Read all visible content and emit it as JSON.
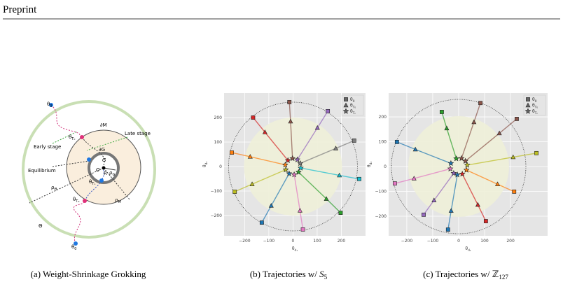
{
  "header": {
    "title": "Preprint"
  },
  "diagram": {
    "labels": {
      "theta0_top": {
        "base": "θ",
        "sub": "0"
      },
      "dM": "∂M",
      "late": "Late stage",
      "thetaT0_up": {
        "base": "θ",
        "sub": "T₀"
      },
      "early": "Early stage",
      "dG": "∂G",
      "G": "G",
      "equilibrium": "Equilibrium",
      "O": "O",
      "R": "R",
      "rhoG": {
        "base": "ρ",
        "sub": "G"
      },
      "thetaTn": {
        "base": "θ",
        "sub": "Tₙ"
      },
      "rhoTheta": {
        "base": "ρ",
        "sub": "Θ"
      },
      "rhoM": {
        "base": "ρ",
        "sub": "M"
      },
      "thetaT0_low": {
        "base": "θ",
        "sub": "T₀"
      },
      "Theta": "Θ",
      "theta0_bot": {
        "base": "θ",
        "sub": "0"
      }
    }
  },
  "chart_data": [
    {
      "type": "scatter",
      "grid": true,
      "legend": "upper right",
      "xlim": [
        -285,
        300
      ],
      "ylim": [
        -283,
        300
      ],
      "xticks": [
        {
          "value": -200,
          "label": "−200"
        },
        {
          "value": -100,
          "label": "−100"
        },
        0,
        100,
        200
      ],
      "yticks": [
        200,
        100,
        0,
        {
          "value": -100,
          "label": "−100"
        },
        {
          "value": -200,
          "label": "−200"
        }
      ],
      "xlabel": {
        "base": "θ",
        "sub": "d₁"
      },
      "ylabel": {
        "base": "θ",
        "sub": "d₂"
      },
      "colors": [
        "#8c564b",
        "#9467bd",
        "#7f7f7f",
        "#17becf",
        "#2ca02c",
        "#e377c2",
        "#1f77b4",
        "#bcbd22",
        "#ff7f0e",
        "#d62728"
      ],
      "series": [
        {
          "name": {
            "base": "θ",
            "sub": "0"
          },
          "marker": "square",
          "x": [
            -15,
            144,
            253,
            274,
            197,
            41,
            -129,
            -241,
            -253,
            -165
          ],
          "y": [
            263,
            226,
            106,
            -51,
            -189,
            -257,
            -229,
            -103,
            57,
            200
          ]
        },
        {
          "name": {
            "base": "θ",
            "sub": "T₀"
          },
          "marker": "triangle",
          "x": [
            -10,
            101,
            177,
            192,
            138,
            29,
            -90,
            -169,
            -177,
            -116
          ],
          "y": [
            184,
            158,
            74,
            -36,
            -132,
            -180,
            -160,
            -72,
            40,
            140
          ]
        },
        {
          "name": {
            "base": "θ",
            "sub": "Tₙ"
          },
          "marker": "star",
          "x": [
            -2,
            18,
            30,
            32,
            23,
            5,
            -16,
            -30,
            -32,
            -21
          ],
          "y": [
            33,
            28,
            13,
            -6,
            -23,
            -33,
            -29,
            -13,
            7,
            25
          ]
        }
      ]
    },
    {
      "type": "scatter",
      "grid": true,
      "legend": "upper right",
      "xlim": [
        -270,
        343
      ],
      "ylim": [
        -279,
        296
      ],
      "xticks": [
        {
          "value": -200,
          "label": "−200"
        },
        {
          "value": -100,
          "label": "−100"
        },
        0,
        100,
        200
      ],
      "yticks": [
        200,
        100,
        0,
        {
          "value": -100,
          "label": "−100"
        },
        {
          "value": -200,
          "label": "−200"
        }
      ],
      "xlabel": {
        "base": "θ",
        "sub": "d₁"
      },
      "ylabel": {
        "base": "θ",
        "sub": "d₂"
      },
      "colors": [
        "#8c564b",
        "#8c564b",
        "#bcbd22",
        "#ff7f0e",
        "#d62728",
        "#1f77b4",
        "#9467bd",
        "#e377c2",
        "#1f77b4",
        "#2ca02c"
      ],
      "series": [
        {
          "name": {
            "base": "θ",
            "sub": "0"
          },
          "marker": "square",
          "x": [
            84,
            224,
            300,
            214,
            105,
            -41,
            -135,
            -246,
            -238,
            -65
          ],
          "y": [
            256,
            192,
            54,
            -101,
            -220,
            -254,
            -194,
            -68,
            99,
            220
          ]
        },
        {
          "name": {
            "base": "θ",
            "sub": "T₀"
          },
          "marker": "triangle",
          "x": [
            59,
            157,
            210,
            150,
            74,
            -29,
            -95,
            -172,
            -167,
            -46
          ],
          "y": [
            179,
            134,
            38,
            -71,
            -154,
            -178,
            -136,
            -48,
            69,
            154
          ]
        },
        {
          "name": {
            "base": "θ",
            "sub": "Tₙ"
          },
          "marker": "star",
          "x": [
            11,
            26,
            33,
            30,
            14,
            -5,
            -19,
            -32,
            -30,
            -9
          ],
          "y": [
            33,
            22,
            6,
            -14,
            -30,
            -33,
            -27,
            -9,
            13,
            32
          ]
        }
      ]
    }
  ],
  "captions": [
    {
      "text": "(a) Weight-Shrinkage Grokking"
    },
    {
      "text": "(b) Trajectories w/ ",
      "math": "S",
      "sub": "5"
    },
    {
      "text": "(c) Trajectories w/ ",
      "math": "ℤ",
      "sub": "127"
    }
  ]
}
